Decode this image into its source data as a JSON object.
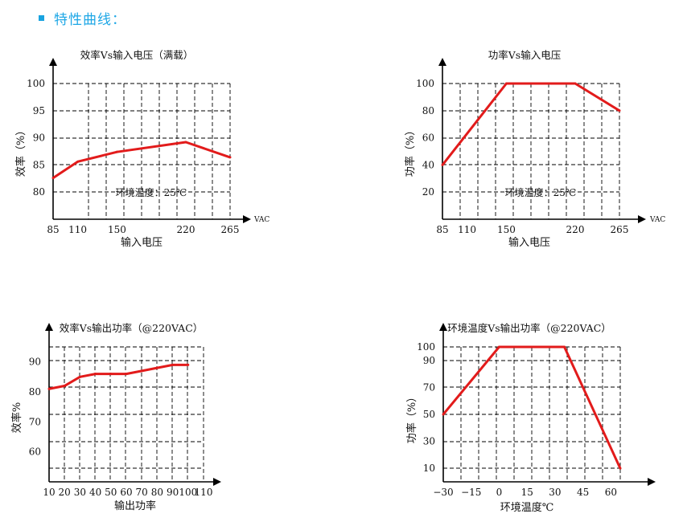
{
  "header": {
    "title": "特性曲线：",
    "bullet_color": "#19a3e0"
  },
  "series_color": "#e21b1b",
  "chart_data": [
    {
      "type": "line",
      "title": "效率Vs输入电压（满载）",
      "xlabel": "输入电压",
      "ylabel": "效率（%）",
      "x_unit": "VAC",
      "annotation": "环境温度：25℃",
      "xlim": [
        85,
        265
      ],
      "ylim": [
        75,
        100
      ],
      "x_ticks": [
        85,
        110,
        150,
        220,
        265
      ],
      "x_tick_labels": [
        "85",
        "110",
        "150",
        "220",
        "265"
      ],
      "y_ticks": [
        80,
        85,
        90,
        95,
        100
      ],
      "y_tick_labels": [
        "80",
        "85",
        "90",
        "95",
        "100"
      ],
      "grid": true,
      "series": [
        {
          "x": [
            85,
            110,
            150,
            220,
            265
          ],
          "y": [
            82.6,
            85.6,
            87.4,
            89.2,
            86.4
          ]
        }
      ]
    },
    {
      "type": "line",
      "title": "功率Vs输入电压",
      "xlabel": "输入电压",
      "ylabel": "功率（%）",
      "x_unit": "VAC",
      "annotation": "环境温度：25℃",
      "xlim": [
        85,
        265
      ],
      "ylim": [
        0,
        100
      ],
      "x_ticks": [
        85,
        110,
        150,
        220,
        265
      ],
      "x_tick_labels": [
        "85",
        "110",
        "150",
        "220",
        "265"
      ],
      "y_ticks": [
        20,
        40,
        60,
        80,
        100
      ],
      "y_tick_labels": [
        "20",
        "40",
        "60",
        "80",
        "100"
      ],
      "grid": true,
      "series": [
        {
          "x": [
            85,
            150,
            220,
            265
          ],
          "y": [
            40,
            100,
            100,
            80
          ]
        }
      ]
    },
    {
      "type": "line",
      "title": "效率Vs输出功率（@220VAC）",
      "xlabel": "输出功率",
      "ylabel": "效率%",
      "xlim": [
        10,
        110
      ],
      "ylim": [
        50,
        95
      ],
      "x_ticks": [
        10,
        20,
        30,
        40,
        50,
        60,
        70,
        80,
        90,
        100,
        110
      ],
      "x_tick_labels": [
        "10",
        "20",
        "30",
        "40",
        "50",
        "60",
        "70",
        "80",
        "90",
        "100",
        "110"
      ],
      "y_ticks": [
        60,
        70,
        80,
        90
      ],
      "y_tick_labels": [
        "60",
        "70",
        "80",
        "90"
      ],
      "grid": true,
      "series": [
        {
          "x": [
            10,
            20,
            30,
            40,
            50,
            60,
            70,
            80,
            90,
            100
          ],
          "y": [
            81,
            82,
            85,
            86,
            86,
            86,
            87,
            88,
            89,
            89
          ]
        }
      ]
    },
    {
      "type": "line",
      "title": "环境温度Vs输出功率（@220VAC）",
      "xlabel": "环境温度℃",
      "ylabel": "功率（%）",
      "xlim": [
        -30,
        65
      ],
      "ylim": [
        0,
        100
      ],
      "x_ticks": [
        -30,
        -15,
        0,
        15,
        30,
        45,
        60
      ],
      "x_tick_labels": [
        "−30",
        "−15",
        "0",
        "15",
        "30",
        "45",
        "60"
      ],
      "y_ticks": [
        10,
        30,
        50,
        70,
        90,
        100
      ],
      "y_tick_labels": [
        "10",
        "30",
        "50",
        "70",
        "90",
        "100"
      ],
      "grid": true,
      "series": [
        {
          "x": [
            -30,
            0,
            35,
            65
          ],
          "y": [
            50,
            100,
            100,
            10
          ]
        }
      ]
    }
  ]
}
